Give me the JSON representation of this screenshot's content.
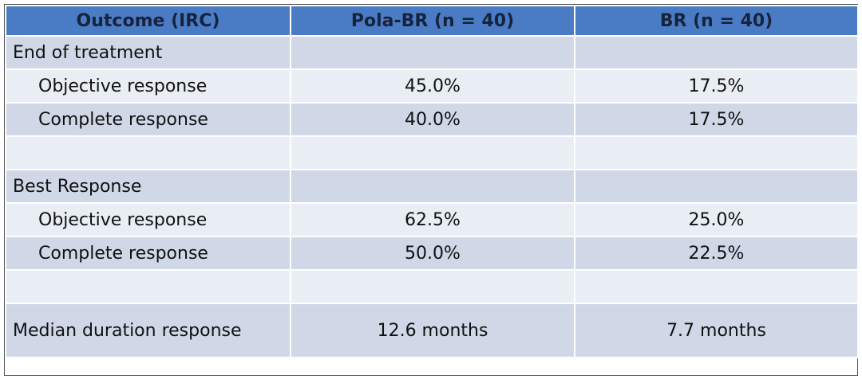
{
  "table": {
    "header": [
      "Outcome (IRC)",
      "Pola-BR (n = 40)",
      "BR (n = 40)"
    ],
    "sections": [
      {
        "title": "End of treatment",
        "rows": [
          [
            "Objective response",
            "45.0%",
            "17.5%"
          ],
          [
            "Complete response",
            "40.0%",
            "17.5%"
          ]
        ]
      },
      {
        "title": "Best Response",
        "rows": [
          [
            "Objective response",
            "62.5%",
            "25.0%"
          ],
          [
            "Complete response",
            "50.0%",
            "22.5%"
          ]
        ]
      }
    ],
    "final_row": [
      "Median duration response",
      "12.6 months",
      "7.7 months"
    ]
  }
}
